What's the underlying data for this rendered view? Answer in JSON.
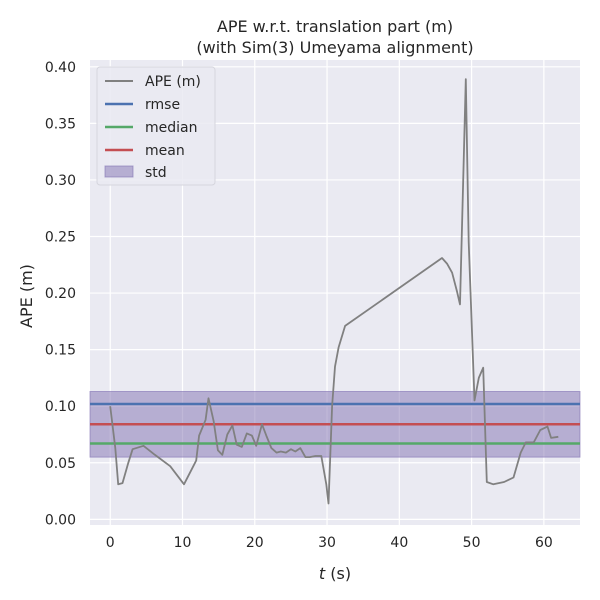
{
  "chart_data": {
    "type": "line",
    "title": "APE w.r.t. translation part (m)",
    "subtitle": "(with Sim(3) Umeyama alignment)",
    "xlabel_italic": "t",
    "xlabel_unit": " (s)",
    "ylabel": "APE (m)",
    "xlim": [
      -2.8,
      65
    ],
    "ylim": [
      -0.005,
      0.406
    ],
    "xticks": [
      0,
      10,
      20,
      30,
      40,
      50,
      60
    ],
    "xtick_labels": [
      "0",
      "10",
      "20",
      "30",
      "40",
      "50",
      "60"
    ],
    "yticks": [
      0.0,
      0.05,
      0.1,
      0.15,
      0.2,
      0.25,
      0.3,
      0.35,
      0.4
    ],
    "ytick_labels": [
      "0.00",
      "0.05",
      "0.10",
      "0.15",
      "0.20",
      "0.25",
      "0.30",
      "0.35",
      "0.40"
    ],
    "grid": true,
    "legend_position": "upper-left",
    "colors": {
      "background": "#eaeaf2",
      "grid": "#ffffff",
      "ape": "#808080",
      "rmse": "#4c72b0",
      "median": "#55a868",
      "mean": "#c44e52",
      "std": "#8172b2"
    },
    "legend": {
      "ape": "APE (m)",
      "rmse": "rmse",
      "median": "median",
      "mean": "mean",
      "std": "std"
    },
    "stats": {
      "rmse": 0.102,
      "median": 0.067,
      "mean": 0.084,
      "std_low": 0.055,
      "std_high": 0.113
    },
    "series": [
      {
        "name": "APE (m)",
        "x": [
          0,
          0.7,
          1.1,
          1.7,
          2.5,
          3.1,
          4.6,
          6.2,
          8.3,
          10.2,
          11.5,
          11.9,
          12.3,
          13.2,
          13.6,
          14.3,
          14.9,
          15.5,
          16.2,
          16.9,
          17.5,
          18.2,
          18.9,
          19.6,
          20.2,
          21.0,
          21.6,
          22.3,
          23.0,
          23.6,
          24.3,
          25.0,
          25.6,
          26.3,
          27.0,
          27.6,
          28.4,
          29.2,
          29.9,
          30.2,
          30.7,
          31.1,
          31.6,
          32.5,
          45.9,
          46.6,
          47.3,
          48.0,
          48.4,
          49.2,
          49.6,
          50.4,
          51.0,
          51.6,
          52.1,
          53.0,
          54.5,
          55.8,
          56.8,
          57.5,
          58.6,
          59.5,
          60.5,
          61.0,
          62.0
        ],
        "y": [
          0.1,
          0.063,
          0.031,
          0.032,
          0.05,
          0.062,
          0.065,
          0.057,
          0.047,
          0.031,
          0.047,
          0.052,
          0.074,
          0.088,
          0.107,
          0.087,
          0.061,
          0.057,
          0.075,
          0.083,
          0.066,
          0.064,
          0.076,
          0.074,
          0.065,
          0.084,
          0.074,
          0.063,
          0.059,
          0.06,
          0.059,
          0.062,
          0.06,
          0.063,
          0.055,
          0.055,
          0.056,
          0.056,
          0.031,
          0.014,
          0.1,
          0.135,
          0.152,
          0.171,
          0.231,
          0.226,
          0.218,
          0.201,
          0.19,
          0.389,
          0.245,
          0.105,
          0.125,
          0.134,
          0.033,
          0.031,
          0.033,
          0.037,
          0.059,
          0.068,
          0.068,
          0.079,
          0.082,
          0.072,
          0.073
        ]
      }
    ]
  }
}
